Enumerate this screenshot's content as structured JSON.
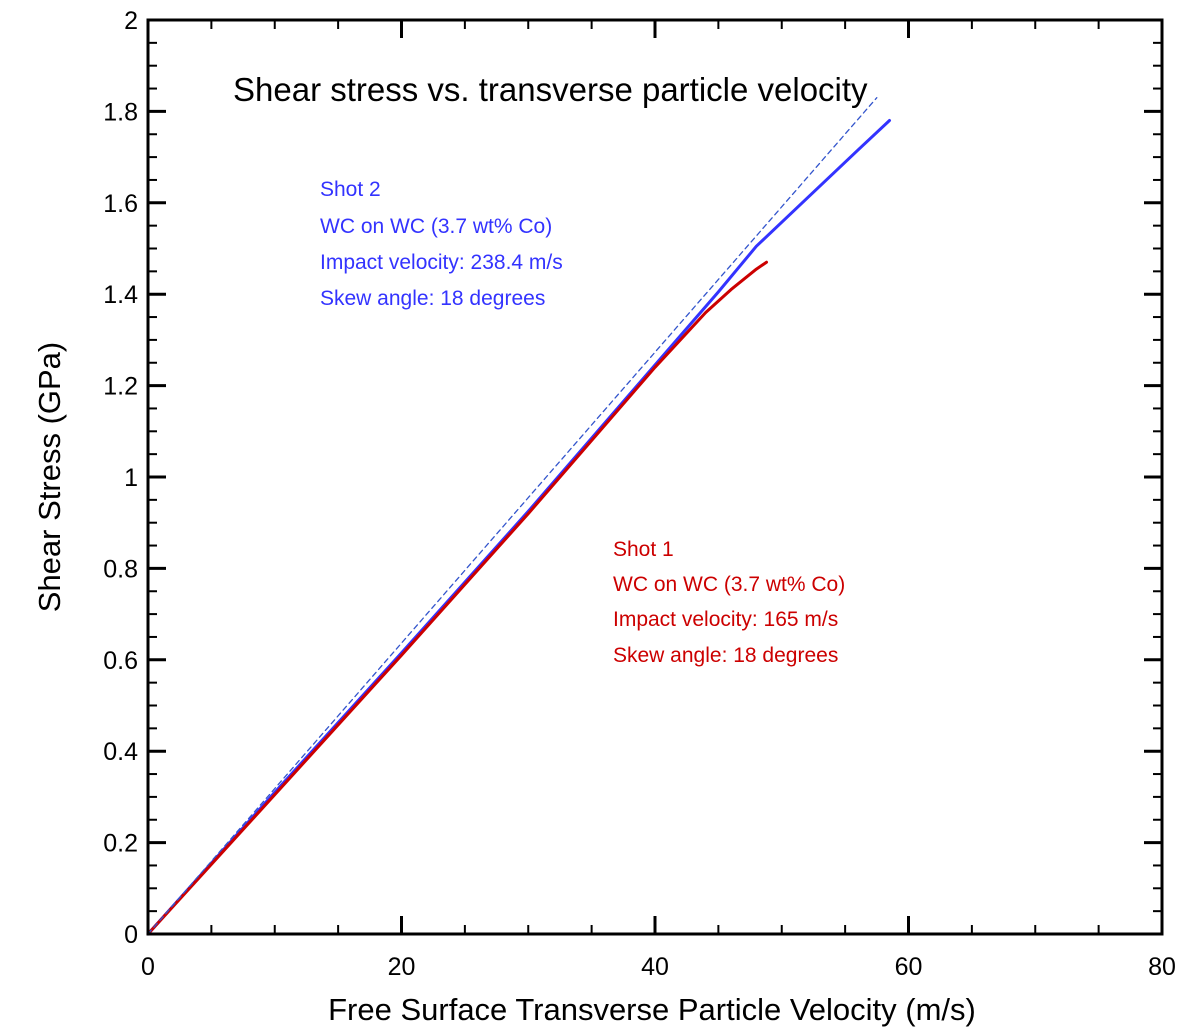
{
  "chart_data": {
    "type": "line",
    "title": "Shear stress vs. transverse particle velocity",
    "xlabel": "Free Surface Transverse Particle Velocity (m/s)",
    "ylabel": "Shear Stress (GPa)",
    "xlim": [
      0,
      80
    ],
    "ylim": [
      0,
      2
    ],
    "x_ticks": [
      "0",
      "20",
      "40",
      "60",
      "80"
    ],
    "y_ticks": [
      "0",
      "0.2",
      "0.4",
      "0.6",
      "0.8",
      "1",
      "1.2",
      "1.4",
      "1.6",
      "1.8",
      "2"
    ],
    "grid": false,
    "series": [
      {
        "color": "#3333ff",
        "style": "solid",
        "x": [
          0,
          10,
          20,
          30,
          40,
          45,
          48,
          52,
          56,
          58.5
        ],
        "y": [
          0,
          0.31,
          0.615,
          0.925,
          1.245,
          1.405,
          1.505,
          1.61,
          1.715,
          1.78
        ]
      },
      {
        "color": "#cc0000",
        "style": "solid",
        "x": [
          0,
          10,
          20,
          30,
          40,
          44,
          46,
          48,
          48.8
        ],
        "y": [
          0,
          0.305,
          0.61,
          0.92,
          1.24,
          1.36,
          1.41,
          1.455,
          1.47
        ]
      },
      {
        "color": "#3355cc",
        "style": "dashed",
        "x": [
          0,
          57.5
        ],
        "y": [
          0,
          1.83
        ]
      }
    ],
    "annotations": [
      {
        "color": "#3333ff",
        "lines": [
          "Shot 2",
          "WC on WC (3.7 wt% Co)",
          "Impact velocity: 238.4 m/s",
          "Skew angle: 18 degrees"
        ]
      },
      {
        "color": "#cc0000",
        "lines": [
          "Shot 1",
          "WC on WC (3.7 wt% Co)",
          "Impact velocity: 165 m/s",
          "Skew angle: 18 degrees"
        ]
      }
    ]
  }
}
